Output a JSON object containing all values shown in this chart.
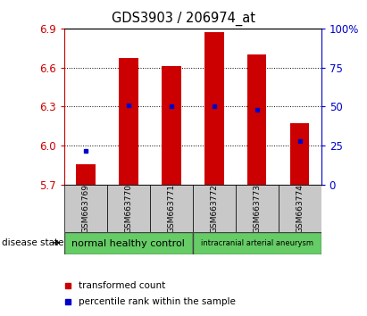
{
  "title": "GDS3903 / 206974_at",
  "samples": [
    "GSM663769",
    "GSM663770",
    "GSM663771",
    "GSM663772",
    "GSM663773",
    "GSM663774"
  ],
  "transformed_counts": [
    5.855,
    6.67,
    6.61,
    6.875,
    6.7,
    6.175
  ],
  "percentile_ranks": [
    22,
    51,
    50,
    50,
    48,
    28
  ],
  "y_min": 5.7,
  "y_max": 6.9,
  "y_ticks": [
    5.7,
    6.0,
    6.3,
    6.6,
    6.9
  ],
  "y2_ticks": [
    0,
    25,
    50,
    75,
    100
  ],
  "bar_color": "#cc0000",
  "percentile_color": "#0000cc",
  "group1_color": "#66cc66",
  "group2_color": "#66cc66",
  "group1_label": "normal healthy control",
  "group2_label": "intracranial arterial aneurysm",
  "disease_state_label": "disease state",
  "legend_bar_label": "transformed count",
  "legend_dot_label": "percentile rank within the sample",
  "bar_width": 0.45,
  "base_value": 5.7,
  "grid_lines": [
    6.0,
    6.3,
    6.6
  ],
  "sample_box_color": "#c8c8c8",
  "n_group1": 3,
  "n_group2": 3
}
